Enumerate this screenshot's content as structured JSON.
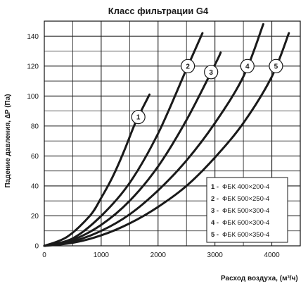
{
  "chart_data": {
    "type": "line",
    "title": "Класс фильтрации G4",
    "xlabel": "Расход воздуха, (м³/ч)",
    "ylabel": "Падение давления, ∆P (Па)",
    "xlim": [
      0,
      4500
    ],
    "ylim": [
      0,
      150
    ],
    "x_ticks": [
      0,
      1000,
      2000,
      3000,
      4000
    ],
    "y_ticks": [
      0,
      20,
      40,
      60,
      80,
      100,
      120,
      140
    ],
    "grid": true,
    "legend_position": "bottom-right",
    "series": [
      {
        "name": "ФБК 400×200-4",
        "label": "1",
        "x": [
          0,
          400,
          800,
          1000,
          1200,
          1400,
          1600,
          1850
        ],
        "y": [
          0,
          6,
          20,
          32,
          46,
          63,
          82,
          101
        ]
      },
      {
        "name": "ФБК 500×250-4",
        "label": "2",
        "x": [
          0,
          500,
          1000,
          1500,
          2000,
          2500,
          2780
        ],
        "y": [
          0,
          5,
          20,
          42,
          75,
          118,
          142
        ]
      },
      {
        "name": "ФБК 500×300-4",
        "label": "3",
        "x": [
          0,
          500,
          1000,
          1500,
          2000,
          2500,
          3000,
          3100
        ],
        "y": [
          0,
          4,
          14,
          30,
          53,
          84,
          121,
          129
        ]
      },
      {
        "name": "ФБК 600×300-4",
        "label": "4",
        "x": [
          0,
          500,
          1000,
          1500,
          2000,
          2500,
          3000,
          3500,
          3850
        ],
        "y": [
          0,
          3,
          10,
          21,
          37,
          57,
          82,
          113,
          148
        ]
      },
      {
        "name": "ФБК 600×350-4",
        "label": "5",
        "x": [
          0,
          500,
          1000,
          1500,
          2000,
          2500,
          3000,
          3500,
          4000,
          4300
        ],
        "y": [
          0,
          2,
          7,
          15,
          26,
          40,
          59,
          82,
          113,
          142
        ]
      }
    ]
  }
}
